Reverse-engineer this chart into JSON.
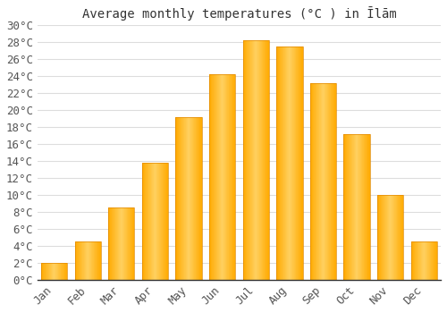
{
  "months": [
    "Jan",
    "Feb",
    "Mar",
    "Apr",
    "May",
    "Jun",
    "Jul",
    "Aug",
    "Sep",
    "Oct",
    "Nov",
    "Dec"
  ],
  "temperatures": [
    2.0,
    4.5,
    8.5,
    13.8,
    19.2,
    24.2,
    28.2,
    27.5,
    23.2,
    17.2,
    10.0,
    4.5
  ],
  "bar_color_main": "#FFAA00",
  "bar_color_light": "#FFD060",
  "bar_edge_color": "#E08800",
  "title": "Average monthly temperatures (°C ) in Īlām",
  "ylim": [
    0,
    30
  ],
  "ytick_step": 2,
  "background_color": "#ffffff",
  "grid_color": "#dddddd",
  "title_fontsize": 10,
  "tick_fontsize": 9,
  "font_family": "monospace"
}
